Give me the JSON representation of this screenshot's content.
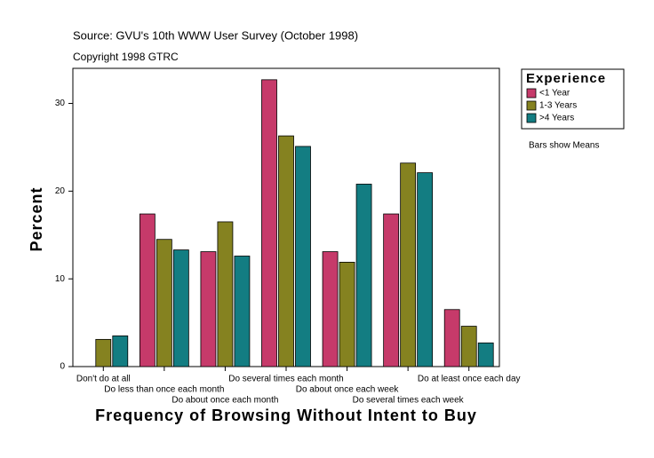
{
  "chart_data": {
    "type": "bar",
    "subtitle": "Source: GVU's 10th WWW User Survey (October 1998)",
    "copyright": "Copyright 1998 GTRC",
    "y_label": "Percent",
    "x_label": "Frequency of Browsing Without Intent to Buy",
    "legend_title": "Experience",
    "note": "Bars show Means",
    "categories": [
      "Don't do at all",
      "Do less than once each month",
      "Do about once each month",
      "Do several times each month",
      "Do about once each week",
      "Do several times each week",
      "Do at least once each day"
    ],
    "series": [
      {
        "name": "<1 Year",
        "color": "#c63a6a",
        "values": [
          0,
          17.4,
          13.1,
          32.7,
          13.1,
          17.4,
          6.5
        ]
      },
      {
        "name": "1-3 Years",
        "color": "#858220",
        "values": [
          3.1,
          14.5,
          16.5,
          26.3,
          11.9,
          23.2,
          4.6
        ]
      },
      {
        "name": ">4 Years",
        "color": "#137d82",
        "values": [
          3.5,
          13.3,
          12.6,
          25.1,
          20.8,
          22.1,
          2.7
        ]
      }
    ],
    "ylim": [
      0,
      34
    ],
    "yticks": [
      0,
      10,
      20,
      30
    ],
    "legend": "right"
  }
}
